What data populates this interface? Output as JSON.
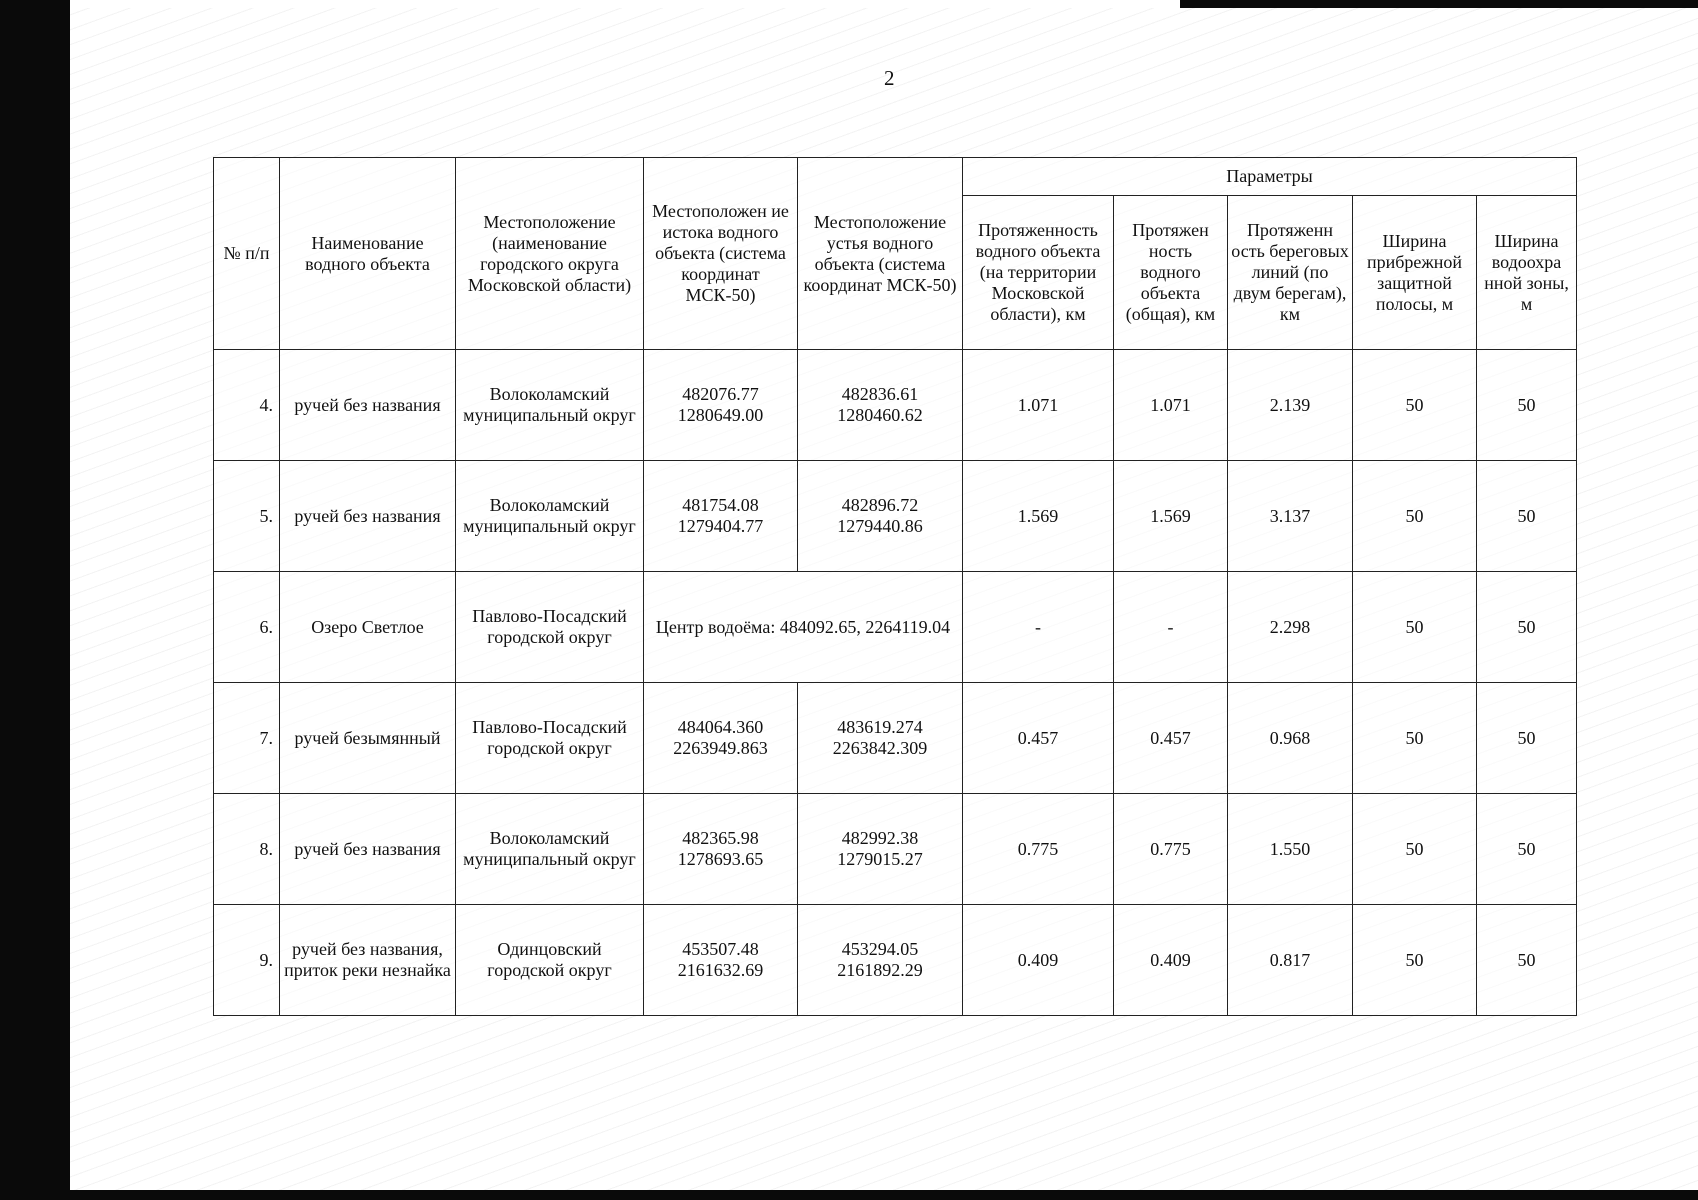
{
  "page_number": "2",
  "headers": {
    "num": "№ п/п",
    "name": "Наименование водного объекта",
    "location": "Местоположение (наименование городского округа Московской области)",
    "source": "Местоположен ие истока водного объекта (система координат МСК-50)",
    "mouth": "Местоположение устья водного объекта (система координат МСК-50)",
    "params": "Параметры",
    "length_region": "Протяженность водного объекта (на территории Московской области), км",
    "length_total": "Протяжен ность водного объекта (общая), км",
    "shoreline": "Протяженн ость береговых линий (по двум берегам), км",
    "coastal_strip": "Ширина прибрежной защитной полосы, м",
    "water_zone": "Ширина водоохра нной зоны, м"
  },
  "rows": [
    {
      "num": "4.",
      "name": "ручей без названия",
      "location": "Волоколамский муниципальный округ",
      "source": "482076.77 1280649.00",
      "mouth": "482836.61 1280460.62",
      "length_region": "1.071",
      "length_total": "1.071",
      "shoreline": "2.139",
      "coastal_strip": "50",
      "water_zone": "50"
    },
    {
      "num": "5.",
      "name": "ручей без названия",
      "location": "Волоколамский муниципальный округ",
      "source": "481754.08 1279404.77",
      "mouth": "482896.72 1279440.86",
      "length_region": "1.569",
      "length_total": "1.569",
      "shoreline": "3.137",
      "coastal_strip": "50",
      "water_zone": "50"
    },
    {
      "num": "6.",
      "name": "Озеро Светлое",
      "location": "Павлово-Посадский городской округ",
      "center": "Центр водоёма: 484092.65, 2264119.04",
      "length_region": "-",
      "length_total": "-",
      "shoreline": "2.298",
      "coastal_strip": "50",
      "water_zone": "50"
    },
    {
      "num": "7.",
      "name": "ручей безымянный",
      "location": "Павлово-Посадский городской округ",
      "source": "484064.360 2263949.863",
      "mouth": "483619.274 2263842.309",
      "length_region": "0.457",
      "length_total": "0.457",
      "shoreline": "0.968",
      "coastal_strip": "50",
      "water_zone": "50"
    },
    {
      "num": "8.",
      "name": "ручей без названия",
      "location": "Волоколамский муниципальный округ",
      "source": "482365.98 1278693.65",
      "mouth": "482992.38 1279015.27",
      "length_region": "0.775",
      "length_total": "0.775",
      "shoreline": "1.550",
      "coastal_strip": "50",
      "water_zone": "50"
    },
    {
      "num": "9.",
      "name": "ручей без названия, приток реки незнайка",
      "location": "Одинцовский городской округ",
      "source": "453507.48 2161632.69",
      "mouth": "453294.05 2161892.29",
      "length_region": "0.409",
      "length_total": "0.409",
      "shoreline": "0.817",
      "coastal_strip": "50",
      "water_zone": "50"
    }
  ]
}
